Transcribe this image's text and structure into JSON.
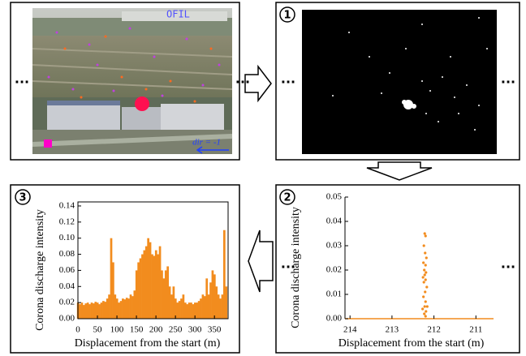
{
  "ellipsis": "···",
  "steps": [
    "1",
    "2",
    "3"
  ],
  "photo": {
    "overlay_text": "OFIL",
    "direction": "dir = -1"
  },
  "chart_data": [
    {
      "type": "scatter",
      "ylabel": "Corona discharge intensity",
      "xlabel": "Displacement from the start (m)",
      "color": "#f28c1e",
      "x": [
        212.22,
        212.2,
        212.24,
        212.21,
        212.18,
        212.25,
        212.2,
        212.23,
        212.19,
        212.22,
        212.26,
        212.2,
        212.24,
        212.17,
        212.21,
        212.25,
        212.2,
        212.16,
        212.22,
        212.27,
        212.19,
        212.23,
        212.2
      ],
      "values": [
        0.035,
        0.034,
        0.03,
        0.027,
        0.025,
        0.023,
        0.022,
        0.02,
        0.019,
        0.018,
        0.017,
        0.016,
        0.015,
        0.013,
        0.011,
        0.009,
        0.007,
        0.005,
        0.005,
        0.004,
        0.003,
        0.002,
        0.001
      ],
      "xlim": [
        214.12,
        210.58
      ],
      "xticks": [
        214,
        213,
        212,
        211
      ],
      "ylim": [
        0,
        0.05
      ],
      "yticks": [
        {
          "value": 0,
          "label": "0.00"
        },
        {
          "value": 0.01,
          "label": "0.01"
        },
        {
          "value": 0.02,
          "label": "0.02"
        },
        {
          "value": 0.03,
          "label": "0.03"
        },
        {
          "value": 0.04,
          "label": "0.04"
        },
        {
          "value": 0.05,
          "label": "0.05"
        }
      ]
    },
    {
      "type": "bar",
      "ylabel": "Corona discharge intensity",
      "xlabel": "Displacement from the start (m)",
      "color": "#f28c1e",
      "x": [
        0,
        5,
        10,
        15,
        20,
        25,
        30,
        35,
        40,
        45,
        50,
        55,
        60,
        65,
        70,
        75,
        80,
        85,
        90,
        95,
        100,
        105,
        110,
        115,
        120,
        125,
        130,
        135,
        140,
        145,
        150,
        155,
        160,
        165,
        170,
        175,
        180,
        185,
        190,
        195,
        200,
        205,
        210,
        215,
        220,
        225,
        230,
        235,
        240,
        245,
        250,
        255,
        260,
        265,
        270,
        275,
        280,
        285,
        290,
        295,
        300,
        305,
        310,
        315,
        320,
        325,
        330,
        335,
        340,
        345,
        350,
        355,
        360,
        365,
        370,
        375,
        380
      ],
      "values": [
        0.02,
        0.018,
        0.02,
        0.017,
        0.019,
        0.02,
        0.018,
        0.02,
        0.019,
        0.021,
        0.02,
        0.018,
        0.02,
        0.022,
        0.021,
        0.025,
        0.03,
        0.1,
        0.07,
        0.03,
        0.025,
        0.02,
        0.022,
        0.025,
        0.024,
        0.026,
        0.025,
        0.03,
        0.028,
        0.035,
        0.06,
        0.07,
        0.075,
        0.08,
        0.085,
        0.09,
        0.1,
        0.095,
        0.08,
        0.078,
        0.085,
        0.08,
        0.09,
        0.06,
        0.05,
        0.06,
        0.065,
        0.04,
        0.03,
        0.04,
        0.025,
        0.02,
        0.022,
        0.025,
        0.03,
        0.02,
        0.018,
        0.02,
        0.02,
        0.018,
        0.02,
        0.02,
        0.022,
        0.025,
        0.03,
        0.028,
        0.05,
        0.03,
        0.045,
        0.06,
        0.055,
        0.04,
        0.03,
        0.025,
        0.03,
        0.11,
        0.04
      ],
      "xlim": [
        0,
        385
      ],
      "xticks": [
        0,
        50,
        100,
        150,
        200,
        250,
        300,
        350
      ],
      "ylim": [
        0,
        0.145
      ],
      "yticks": [
        {
          "value": 0,
          "label": "0.00"
        },
        {
          "value": 0.02,
          "label": "0.02"
        },
        {
          "value": 0.04,
          "label": "0.04"
        },
        {
          "value": 0.06,
          "label": "0.06"
        },
        {
          "value": 0.08,
          "label": "0.08"
        },
        {
          "value": 0.1,
          "label": "0.10"
        },
        {
          "value": 0.12,
          "label": "0.12"
        },
        {
          "value": 0.14,
          "label": "0.14"
        }
      ]
    }
  ]
}
